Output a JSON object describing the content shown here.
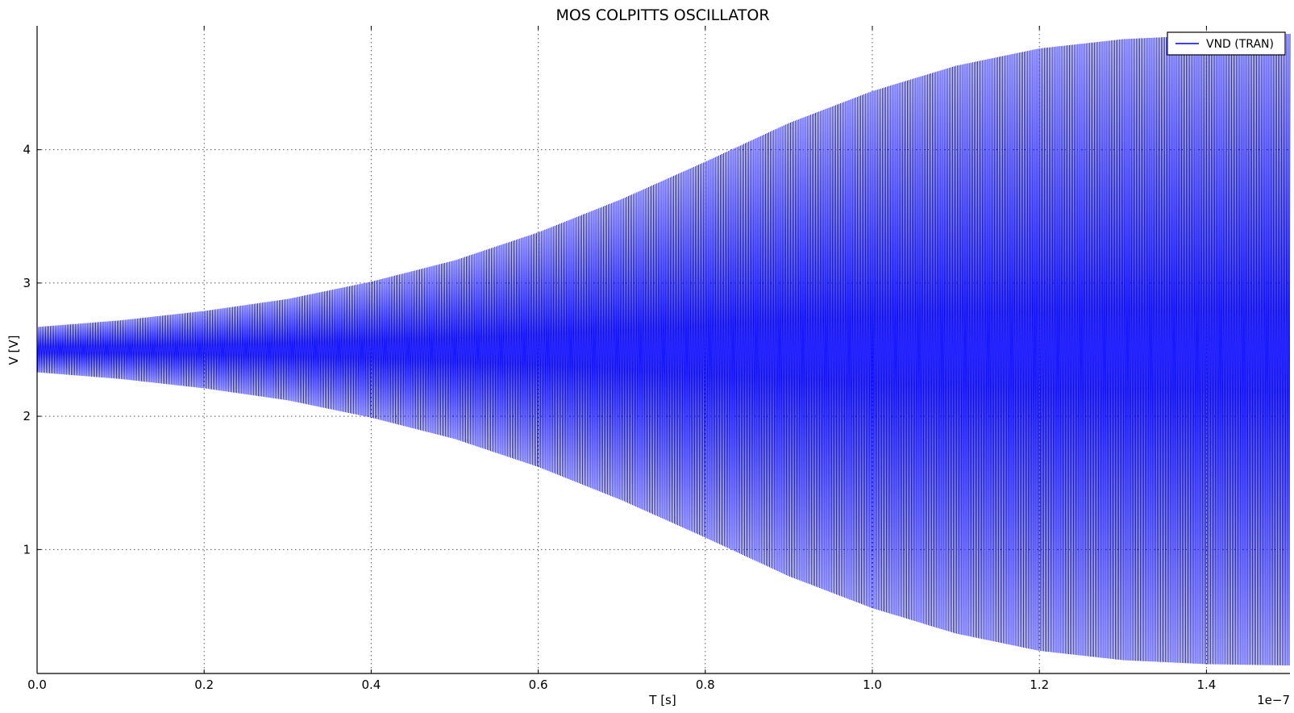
{
  "chart_data": {
    "type": "line",
    "title": "MOS COLPITTS OSCILLATOR",
    "xlabel": "T [s]",
    "ylabel": "V [V]",
    "x_multiplier_label": "1e−7",
    "xlim": [
      0.0,
      1.5
    ],
    "ylim": [
      0.07,
      4.93
    ],
    "x_ticks": [
      0.0,
      0.2,
      0.4,
      0.6,
      0.8,
      1.0,
      1.2,
      1.4
    ],
    "x_tick_labels": [
      "0.0",
      "0.2",
      "0.4",
      "0.6",
      "0.8",
      "1.0",
      "1.2",
      "1.4"
    ],
    "y_ticks": [
      1,
      2,
      3,
      4
    ],
    "y_tick_labels": [
      "1",
      "2",
      "3",
      "4"
    ],
    "grid": true,
    "legend_position": "top-right",
    "series": [
      {
        "name": "VND (TRAN)",
        "color": "#0000ff",
        "description_kind": "oscillation envelope",
        "x": [
          0.0,
          0.1,
          0.2,
          0.3,
          0.4,
          0.5,
          0.6,
          0.7,
          0.8,
          0.9,
          1.0,
          1.1,
          1.2,
          1.3,
          1.4,
          1.5
        ],
        "upper": [
          2.67,
          2.72,
          2.79,
          2.88,
          3.01,
          3.17,
          3.38,
          3.63,
          3.91,
          4.2,
          4.44,
          4.63,
          4.76,
          4.83,
          4.86,
          4.87
        ],
        "lower": [
          2.33,
          2.28,
          2.21,
          2.12,
          1.99,
          1.83,
          1.62,
          1.37,
          1.09,
          0.8,
          0.56,
          0.37,
          0.24,
          0.17,
          0.14,
          0.13
        ]
      }
    ]
  }
}
